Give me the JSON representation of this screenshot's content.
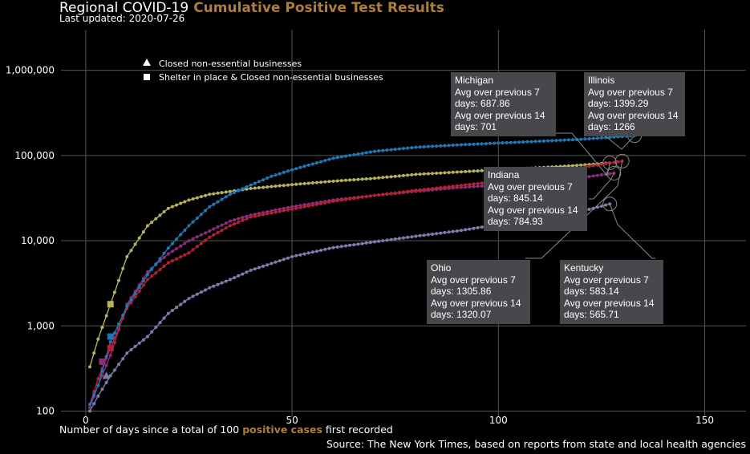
{
  "header": {
    "title": "Regional COVID-19",
    "title_accent": "Cumulative Positive Test Results",
    "subtitle": "Last updated: 2020-07-26"
  },
  "legend": [
    {
      "marker": "triangle",
      "label": "Closed non-essential businesses"
    },
    {
      "marker": "square",
      "label": "Shelter in place & Closed non-essential businesses"
    }
  ],
  "axes": {
    "xlabel_prefix": "Number of days since a total of 100 ",
    "xlabel_accent": "positive cases",
    "xlabel_suffix": " first recorded",
    "xticks": [
      "0",
      "50",
      "100",
      "150"
    ],
    "yticks": [
      "100",
      "1,000",
      "10,000",
      "100,000",
      "1,000,000"
    ]
  },
  "source": "Source: The New York Times, based on reports from state and local health agencies",
  "annotations": [
    {
      "state": "Michigan",
      "line1": "Avg over previous 7",
      "line2": "days: 687.86",
      "line3": "Avg over previous 14",
      "line4": "days: 701"
    },
    {
      "state": "Illinois",
      "line1": "Avg over previous 7",
      "line2": "days: 1399.29",
      "line3": "Avg over previous 14",
      "line4": "days: 1266"
    },
    {
      "state": "Indiana",
      "line1": "Avg over previous 7",
      "line2": "days: 845.14",
      "line3": "Avg over previous 14",
      "line4": "days: 784.93"
    },
    {
      "state": "Ohio",
      "line1": "Avg over previous 7",
      "line2": "days: 1305.86",
      "line3": "Avg over previous 14",
      "line4": "days: 1320.07"
    },
    {
      "state": "Kentucky",
      "line1": "Avg over previous 7",
      "line2": "days: 583.14",
      "line3": "Avg over previous 14",
      "line4": "days: 565.71"
    }
  ],
  "chart_data": {
    "type": "line",
    "ylog": true,
    "xlim": [
      -6,
      160
    ],
    "ylim": [
      85,
      3000000
    ],
    "grid": true,
    "series": [
      {
        "name": "Illinois",
        "color": "#1f78b4",
        "days": 133,
        "anchors": [
          [
            1,
            120
          ],
          [
            3,
            200
          ],
          [
            6,
            650
          ],
          [
            10,
            1700
          ],
          [
            15,
            4000
          ],
          [
            20,
            8200
          ],
          [
            25,
            15000
          ],
          [
            30,
            25000
          ],
          [
            35,
            35000
          ],
          [
            40,
            45000
          ],
          [
            45,
            57000
          ],
          [
            50,
            68000
          ],
          [
            60,
            93000
          ],
          [
            70,
            112000
          ],
          [
            80,
            125000
          ],
          [
            90,
            133000
          ],
          [
            100,
            140000
          ],
          [
            110,
            147000
          ],
          [
            120,
            155000
          ],
          [
            133,
            171000
          ]
        ]
      },
      {
        "name": "Michigan",
        "color": "#b5b160",
        "days": 127,
        "anchors": [
          [
            1,
            330
          ],
          [
            3,
            700
          ],
          [
            6,
            1800
          ],
          [
            10,
            6500
          ],
          [
            15,
            15000
          ],
          [
            20,
            24000
          ],
          [
            25,
            30000
          ],
          [
            30,
            35000
          ],
          [
            40,
            41000
          ],
          [
            50,
            45500
          ],
          [
            60,
            50000
          ],
          [
            70,
            54000
          ],
          [
            80,
            60000
          ],
          [
            90,
            64000
          ],
          [
            100,
            68000
          ],
          [
            110,
            72000
          ],
          [
            120,
            77000
          ],
          [
            127,
            82000
          ]
        ]
      },
      {
        "name": "Ohio",
        "color": "#b22234",
        "days": 130,
        "anchors": [
          [
            1,
            120
          ],
          [
            3,
            240
          ],
          [
            6,
            550
          ],
          [
            10,
            1600
          ],
          [
            15,
            3500
          ],
          [
            20,
            5500
          ],
          [
            25,
            7200
          ],
          [
            30,
            11000
          ],
          [
            35,
            15000
          ],
          [
            40,
            19000
          ],
          [
            50,
            23500
          ],
          [
            60,
            29000
          ],
          [
            70,
            34000
          ],
          [
            80,
            39000
          ],
          [
            90,
            44000
          ],
          [
            100,
            50000
          ],
          [
            110,
            59000
          ],
          [
            120,
            72000
          ],
          [
            130,
            86000
          ]
        ]
      },
      {
        "name": "Indiana",
        "color": "#8b2c7a",
        "days": 128,
        "anchors": [
          [
            1,
            110
          ],
          [
            3,
            200
          ],
          [
            6,
            450
          ],
          [
            10,
            1800
          ],
          [
            15,
            4300
          ],
          [
            20,
            7000
          ],
          [
            25,
            10000
          ],
          [
            30,
            13000
          ],
          [
            35,
            17000
          ],
          [
            40,
            20000
          ],
          [
            50,
            25000
          ],
          [
            60,
            30000
          ],
          [
            70,
            34000
          ],
          [
            80,
            38000
          ],
          [
            90,
            42000
          ],
          [
            100,
            45000
          ],
          [
            110,
            49000
          ],
          [
            120,
            55000
          ],
          [
            128,
            62000
          ]
        ]
      },
      {
        "name": "Kentucky",
        "color": "#7a7eab",
        "days": 127,
        "anchors": [
          [
            1,
            100
          ],
          [
            3,
            150
          ],
          [
            6,
            260
          ],
          [
            10,
            480
          ],
          [
            15,
            750
          ],
          [
            20,
            1400
          ],
          [
            25,
            2100
          ],
          [
            30,
            2800
          ],
          [
            35,
            3500
          ],
          [
            40,
            4500
          ],
          [
            45,
            5400
          ],
          [
            50,
            6500
          ],
          [
            60,
            8300
          ],
          [
            70,
            9700
          ],
          [
            80,
            11300
          ],
          [
            90,
            13000
          ],
          [
            100,
            15500
          ],
          [
            110,
            18000
          ],
          [
            120,
            22000
          ],
          [
            127,
            27000
          ]
        ]
      }
    ],
    "policy_markers": [
      {
        "state": "Kentucky",
        "day": 5,
        "value": 260,
        "marker": "triangle"
      },
      {
        "state": "Indiana",
        "day": 4,
        "value": 380,
        "marker": "square"
      },
      {
        "state": "Ohio",
        "day": 6,
        "value": 550,
        "marker": "square"
      },
      {
        "state": "Illinois",
        "day": 6,
        "value": 750,
        "marker": "square"
      },
      {
        "state": "Michigan",
        "day": 6,
        "value": 1800,
        "marker": "square"
      }
    ]
  }
}
